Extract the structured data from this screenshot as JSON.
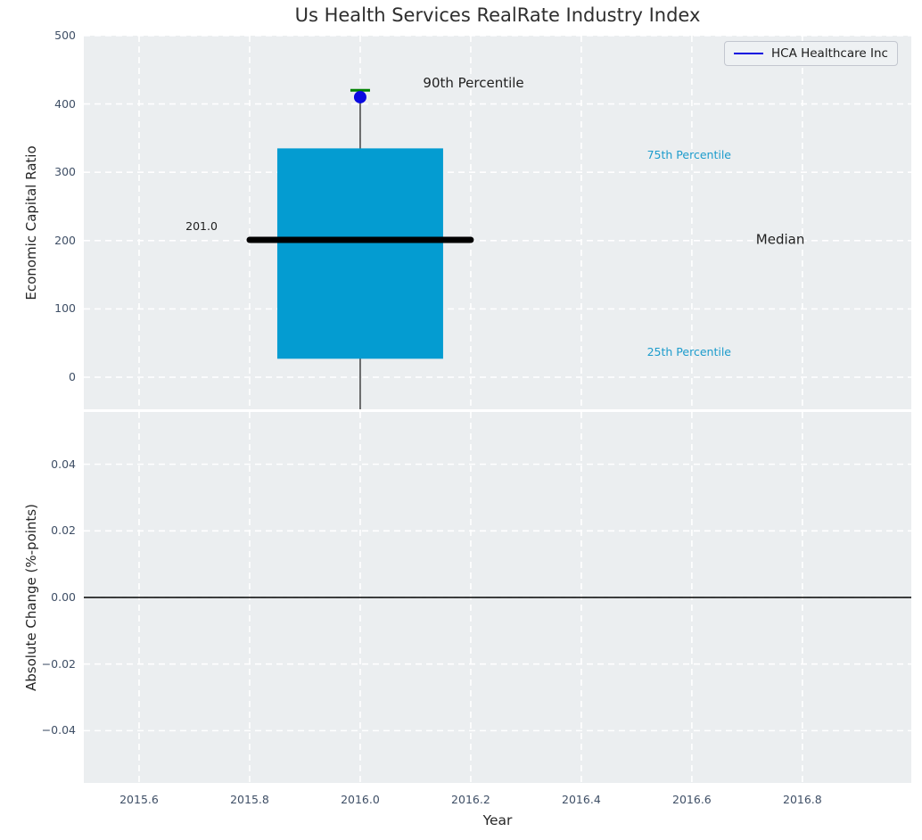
{
  "figure": {
    "title": "Us Health Services RealRate Industry Index",
    "xlabel": "Year"
  },
  "legend": {
    "label": "HCA Healthcare Inc"
  },
  "colors": {
    "figure_bg": "#ffffff",
    "plot_bg": "#ebeef0",
    "grid": "#ffffff",
    "box_fill": "#049cd1",
    "median_line": "#000000",
    "whisker": "#4a4a4a",
    "marker": "#0b0be0",
    "legend_line": "#0b0be0",
    "p90_tick": "#008200",
    "annotation_cyan": "#1d9ccc",
    "annotation_dark": "#1f1f1f",
    "tick_label": "#3f4f66",
    "axis_label": "#262626",
    "title": "#2e2e2e",
    "zero_line": "#000000",
    "legend_border": "#c3c7cf",
    "legend_bg": "#eef1f3"
  },
  "chart_data": [
    {
      "type": "box",
      "panel": "economic-capital-ratio",
      "title": "Us Health Services RealRate Industry Index",
      "ylabel": "Economic Capital Ratio",
      "xlim": [
        2015.5,
        2016.997
      ],
      "ylim": [
        -47,
        500
      ],
      "grid": true,
      "show_xtick_labels": false,
      "yticks": [
        {
          "v": 0,
          "label": "0"
        },
        {
          "v": 100,
          "label": "100"
        },
        {
          "v": 200,
          "label": "200"
        },
        {
          "v": 300,
          "label": "300"
        },
        {
          "v": 400,
          "label": "400"
        },
        {
          "v": 500,
          "label": "500"
        }
      ],
      "xticks": [
        {
          "v": 2015.6,
          "label": "2015.6"
        },
        {
          "v": 2015.8,
          "label": "2015.8"
        },
        {
          "v": 2016.0,
          "label": "2016.0"
        },
        {
          "v": 2016.2,
          "label": "2016.2"
        },
        {
          "v": 2016.4,
          "label": "2016.4"
        },
        {
          "v": 2016.6,
          "label": "2016.6"
        },
        {
          "v": 2016.8,
          "label": "2016.8"
        }
      ],
      "box": {
        "x": 2016.0,
        "box_halfwidth": 0.15,
        "median_halfwidth": 0.2,
        "q1": 27,
        "median": 201,
        "q3": 335,
        "p90": 420,
        "whisker_low": -47
      },
      "marker": {
        "x": 2016.0,
        "y": 410,
        "series": "HCA Healthcare Inc"
      },
      "annotations": [
        {
          "text": "201.0",
          "x": 2015.713,
          "y": 221,
          "size": "small",
          "color": "dark"
        },
        {
          "text": "90th Percentile",
          "x": 2016.205,
          "y": 431,
          "size": "large",
          "color": "dark"
        },
        {
          "text": "75th Percentile",
          "x": 2016.595,
          "y": 326,
          "size": "small",
          "color": "cyan"
        },
        {
          "text": "Median",
          "x": 2016.76,
          "y": 202,
          "size": "large",
          "color": "dark"
        },
        {
          "text": "25th Percentile",
          "x": 2016.595,
          "y": 37,
          "size": "small",
          "color": "cyan"
        }
      ]
    },
    {
      "type": "line",
      "panel": "absolute-change",
      "ylabel": "Absolute Change (%-points)",
      "xlabel": "Year",
      "xlim": [
        2015.5,
        2016.997
      ],
      "ylim": [
        -0.0557,
        0.0557
      ],
      "grid": true,
      "show_xtick_labels": true,
      "yticks": [
        {
          "v": 0.04,
          "label": "0.04"
        },
        {
          "v": 0.02,
          "label": "0.02"
        },
        {
          "v": 0,
          "label": "0.00"
        },
        {
          "v": -0.02,
          "label": "−0.02"
        },
        {
          "v": -0.04,
          "label": "−0.04"
        }
      ],
      "xticks": [
        {
          "v": 2015.6,
          "label": "2015.6"
        },
        {
          "v": 2015.8,
          "label": "2015.8"
        },
        {
          "v": 2016.0,
          "label": "2016.0"
        },
        {
          "v": 2016.2,
          "label": "2016.2"
        },
        {
          "v": 2016.4,
          "label": "2016.4"
        },
        {
          "v": 2016.6,
          "label": "2016.6"
        },
        {
          "v": 2016.8,
          "label": "2016.8"
        }
      ],
      "zero_line": 0,
      "series": []
    }
  ]
}
